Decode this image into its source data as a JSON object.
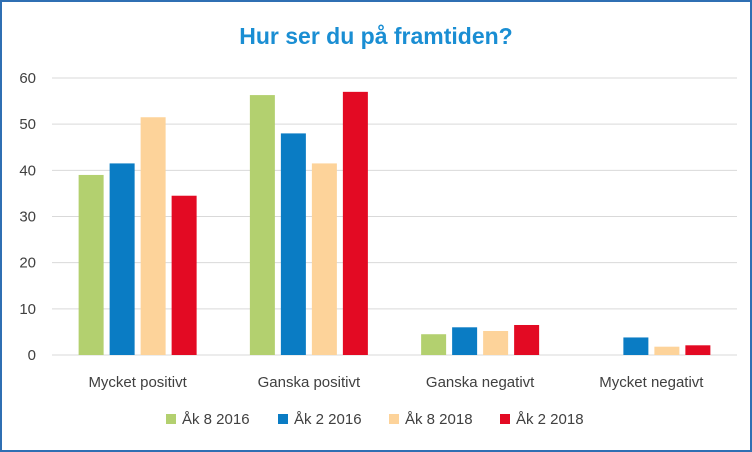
{
  "chart_data": {
    "type": "bar",
    "title": "Hur ser du på framtiden?",
    "categories": [
      "Mycket positivt",
      "Ganska positivt",
      "Ganska negativt",
      "Mycket negativt"
    ],
    "series": [
      {
        "name": "Åk 8 2016",
        "color": "#b3d06f",
        "values": [
          39,
          56.3,
          4.5,
          null
        ]
      },
      {
        "name": "Åk 2 2016",
        "color": "#0a7cc4",
        "values": [
          41.5,
          48,
          6,
          3.8
        ]
      },
      {
        "name": "Åk 8 2018",
        "color": "#fdd39a",
        "values": [
          51.5,
          41.5,
          5.2,
          1.8
        ]
      },
      {
        "name": "Åk 2 2018",
        "color": "#e30a23",
        "values": [
          34.5,
          57,
          6.5,
          2.1
        ]
      }
    ],
    "ylim": [
      0,
      60
    ],
    "yticks": [
      0,
      10,
      20,
      30,
      40,
      50,
      60
    ],
    "grid": true,
    "legend": "bottom",
    "xlabel": "",
    "ylabel": ""
  },
  "colors": {
    "title": "#1a8ed3",
    "gridline": "#d9d9d9",
    "border": "#2f6fb3"
  }
}
